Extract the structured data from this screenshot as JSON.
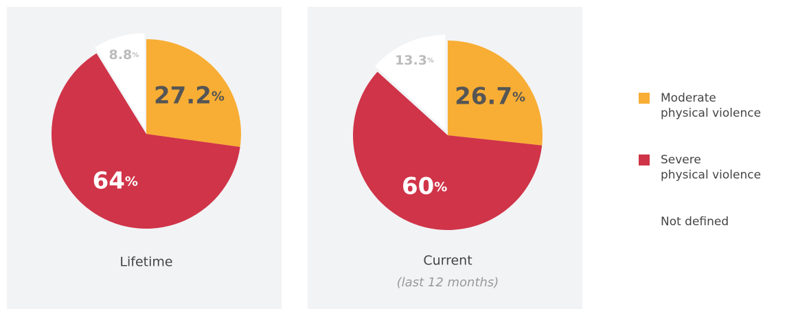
{
  "chart_data": [
    {
      "type": "pie",
      "title": "Lifetime",
      "categories": [
        "Moderate\nphysical violence",
        "Severe\nphysical violence",
        "Not defined"
      ],
      "values": [
        27.2,
        64,
        8.8
      ],
      "value_labels": [
        "27.2%",
        "64%",
        "8.8%"
      ],
      "colors": [
        "#f8ae34",
        "#d03448",
        "#ffffff"
      ]
    },
    {
      "type": "pie",
      "title": "Current",
      "subtitle": "(last 12 months)",
      "categories": [
        "Moderate\nphysical violence",
        "Severe\nphysical violence",
        "Not defined"
      ],
      "values": [
        26.7,
        60,
        13.3
      ],
      "value_labels": [
        "26.7%",
        "60%",
        "13.3%"
      ],
      "colors": [
        "#f8ae34",
        "#d03448",
        "#ffffff"
      ]
    }
  ]
}
